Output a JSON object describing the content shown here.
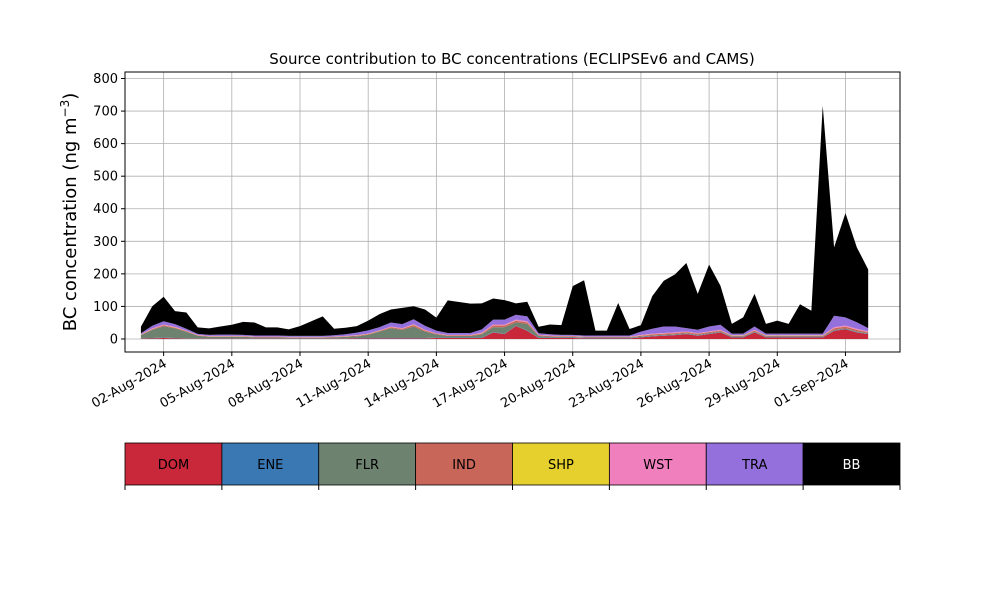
{
  "chart_data": {
    "type": "area",
    "title": "Source contribution to BC concentrations (ECLIPSEv6 and CAMS)",
    "ylabel": "BC concentration (ng m",
    "ylabel_sup": "−3",
    "ylabel_close": ")",
    "xlabel": "",
    "ylim": [
      -40,
      820
    ],
    "yticks": [
      0,
      100,
      200,
      300,
      400,
      500,
      600,
      700,
      800
    ],
    "x_start": "2024-07-31",
    "xlim_days": [
      0.3,
      34.4
    ],
    "x_tick_days": [
      2,
      5,
      8,
      11,
      14,
      17,
      20,
      23,
      26,
      29,
      32
    ],
    "x_tick_labels": [
      "02-Aug-2024",
      "05-Aug-2024",
      "08-Aug-2024",
      "11-Aug-2024",
      "14-Aug-2024",
      "17-Aug-2024",
      "20-Aug-2024",
      "23-Aug-2024",
      "26-Aug-2024",
      "29-Aug-2024",
      "01-Sep-2024"
    ],
    "grid": true,
    "x_days": [
      1.0,
      1.5,
      2.0,
      2.5,
      3.0,
      3.5,
      4.0,
      4.5,
      5.0,
      5.5,
      6.0,
      6.5,
      7.0,
      7.5,
      8.0,
      8.5,
      9.0,
      9.5,
      10.0,
      10.5,
      11.0,
      11.5,
      12.0,
      12.5,
      13.0,
      13.5,
      14.0,
      14.5,
      15.0,
      15.5,
      16.0,
      16.5,
      17.0,
      17.5,
      18.0,
      18.5,
      19.0,
      19.5,
      20.0,
      20.5,
      21.0,
      21.5,
      22.0,
      22.5,
      23.0,
      23.5,
      24.0,
      24.5,
      25.0,
      25.5,
      26.0,
      26.5,
      27.0,
      27.5,
      28.0,
      28.5,
      29.0,
      29.5,
      30.0,
      30.5,
      31.0,
      31.5,
      32.0,
      32.5,
      33.0
    ],
    "series": [
      {
        "name": "DOM",
        "color": "#c8283a",
        "values": [
          1,
          2,
          3,
          2,
          1,
          1,
          1,
          1,
          1,
          1,
          1,
          1,
          1,
          1,
          1,
          1,
          1,
          1,
          1,
          2,
          2,
          2,
          2,
          2,
          2,
          2,
          3,
          3,
          3,
          3,
          3,
          20,
          15,
          40,
          25,
          3,
          3,
          3,
          3,
          2,
          2,
          2,
          2,
          2,
          5,
          8,
          10,
          12,
          15,
          10,
          15,
          20,
          5,
          5,
          20,
          5,
          5,
          5,
          5,
          5,
          5,
          25,
          30,
          20,
          15
        ]
      },
      {
        "name": "ENE",
        "color": "#3a78b4",
        "values": [
          1,
          1,
          1,
          1,
          1,
          1,
          1,
          1,
          1,
          1,
          1,
          1,
          1,
          1,
          1,
          1,
          1,
          1,
          1,
          1,
          1,
          1,
          1,
          1,
          1,
          1,
          1,
          1,
          1,
          1,
          1,
          1,
          1,
          1,
          1,
          1,
          1,
          1,
          1,
          1,
          1,
          1,
          1,
          1,
          1,
          1,
          1,
          1,
          1,
          1,
          1,
          1,
          1,
          1,
          1,
          1,
          1,
          1,
          1,
          1,
          1,
          1,
          1,
          1,
          1
        ]
      },
      {
        "name": "FLR",
        "color": "#6e8270",
        "values": [
          10,
          25,
          35,
          30,
          20,
          8,
          5,
          5,
          5,
          5,
          3,
          3,
          3,
          2,
          2,
          2,
          2,
          3,
          5,
          5,
          10,
          20,
          30,
          25,
          35,
          20,
          10,
          5,
          5,
          5,
          10,
          15,
          20,
          10,
          20,
          5,
          3,
          2,
          2,
          2,
          2,
          2,
          2,
          2,
          2,
          2,
          2,
          2,
          2,
          2,
          2,
          2,
          2,
          2,
          2,
          2,
          2,
          2,
          2,
          2,
          2,
          2,
          2,
          2,
          2
        ]
      },
      {
        "name": "IND",
        "color": "#c8665a",
        "values": [
          1,
          2,
          3,
          2,
          2,
          1,
          1,
          1,
          1,
          1,
          1,
          1,
          1,
          1,
          1,
          1,
          1,
          1,
          1,
          2,
          2,
          2,
          3,
          3,
          5,
          3,
          2,
          2,
          2,
          2,
          3,
          5,
          5,
          5,
          5,
          2,
          2,
          2,
          2,
          1,
          1,
          1,
          1,
          1,
          2,
          3,
          3,
          3,
          3,
          3,
          3,
          3,
          2,
          2,
          3,
          2,
          2,
          2,
          2,
          2,
          2,
          5,
          5,
          5,
          3
        ]
      },
      {
        "name": "SHP",
        "color": "#e6d02e",
        "values": [
          0.5,
          0.5,
          0.5,
          0.5,
          0.5,
          0.5,
          0.5,
          0.5,
          0.5,
          0.5,
          0.5,
          0.5,
          0.5,
          0.5,
          0.5,
          0.5,
          0.5,
          0.5,
          0.5,
          0.5,
          0.5,
          0.5,
          0.5,
          0.5,
          0.5,
          0.5,
          0.5,
          0.5,
          0.5,
          0.5,
          0.5,
          0.5,
          0.5,
          0.5,
          0.5,
          0.5,
          0.5,
          0.5,
          0.5,
          0.5,
          0.5,
          0.5,
          0.5,
          0.5,
          0.5,
          0.5,
          0.5,
          0.5,
          0.5,
          0.5,
          0.5,
          0.5,
          0.5,
          0.5,
          0.5,
          0.5,
          0.5,
          0.5,
          0.5,
          0.5,
          0.5,
          0.5,
          0.5,
          0.5,
          0.5
        ]
      },
      {
        "name": "WST",
        "color": "#f07fbe",
        "values": [
          1,
          2,
          2,
          2,
          1,
          1,
          1,
          1,
          1,
          1,
          1,
          1,
          1,
          1,
          1,
          1,
          1,
          1,
          1,
          1,
          1,
          1,
          2,
          2,
          2,
          2,
          1,
          1,
          1,
          1,
          2,
          3,
          3,
          3,
          3,
          1,
          1,
          1,
          1,
          1,
          1,
          1,
          1,
          1,
          2,
          2,
          2,
          2,
          2,
          2,
          2,
          2,
          1,
          1,
          2,
          1,
          1,
          1,
          1,
          1,
          1,
          3,
          3,
          3,
          2
        ]
      },
      {
        "name": "TRA",
        "color": "#9370db",
        "values": [
          3,
          8,
          10,
          8,
          6,
          3,
          3,
          4,
          4,
          3,
          3,
          3,
          3,
          3,
          3,
          3,
          3,
          4,
          5,
          8,
          10,
          10,
          12,
          12,
          15,
          12,
          8,
          6,
          6,
          6,
          10,
          15,
          15,
          15,
          15,
          5,
          4,
          3,
          3,
          3,
          3,
          3,
          3,
          3,
          10,
          15,
          20,
          18,
          10,
          10,
          15,
          15,
          5,
          5,
          10,
          5,
          5,
          5,
          5,
          5,
          5,
          35,
          25,
          20,
          10
        ]
      },
      {
        "name": "BB",
        "color": "#000000",
        "values": [
          20,
          60,
          75,
          40,
          50,
          20,
          20,
          25,
          30,
          40,
          40,
          25,
          25,
          20,
          30,
          45,
          60,
          20,
          20,
          20,
          30,
          40,
          40,
          50,
          40,
          50,
          40,
          100,
          95,
          90,
          80,
          65,
          60,
          35,
          45,
          20,
          30,
          30,
          150,
          170,
          15,
          15,
          100,
          20,
          20,
          100,
          140,
          160,
          200,
          110,
          190,
          120,
          30,
          50,
          100,
          30,
          40,
          30,
          90,
          70,
          700,
          210,
          320,
          230,
          180
        ]
      }
    ]
  }
}
